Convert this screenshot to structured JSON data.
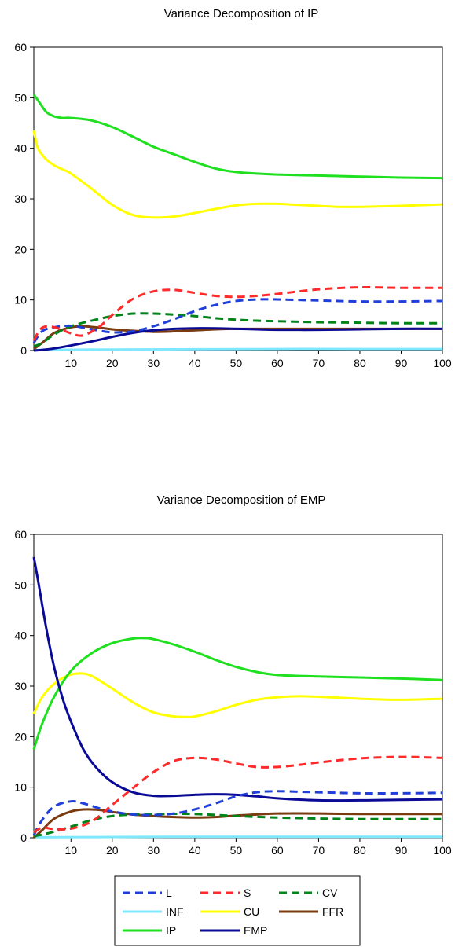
{
  "chart_data": [
    {
      "type": "line",
      "title": "Variance Decomposition of IP",
      "xlabel": "",
      "ylabel": "",
      "xlim": [
        1,
        100
      ],
      "ylim": [
        0,
        60
      ],
      "xticks": [
        10,
        20,
        30,
        40,
        50,
        60,
        70,
        80,
        90,
        100
      ],
      "yticks": [
        0,
        10,
        20,
        30,
        40,
        50,
        60
      ],
      "grid": false,
      "series": [
        {
          "name": "L",
          "color": "#1f3fd8",
          "dash": true,
          "x": [
            1,
            3,
            6,
            10,
            15,
            20,
            25,
            30,
            35,
            40,
            45,
            50,
            55,
            60,
            70,
            80,
            90,
            100
          ],
          "values": [
            1.5,
            3.8,
            4.6,
            4.9,
            4.2,
            3.6,
            3.8,
            4.8,
            6.2,
            7.8,
            9.0,
            9.8,
            10.1,
            10.1,
            9.9,
            9.7,
            9.7,
            9.8
          ]
        },
        {
          "name": "S",
          "color": "#ff2a2a",
          "dash": true,
          "x": [
            1,
            3,
            6,
            10,
            13,
            17,
            20,
            25,
            30,
            35,
            40,
            45,
            50,
            55,
            60,
            70,
            80,
            90,
            100
          ],
          "values": [
            2.0,
            4.5,
            4.6,
            3.4,
            3.0,
            4.8,
            7.0,
            10.2,
            11.7,
            12.0,
            11.4,
            10.8,
            10.6,
            10.8,
            11.2,
            12.1,
            12.5,
            12.4,
            12.4
          ]
        },
        {
          "name": "CV",
          "color": "#00841a",
          "dash": true,
          "x": [
            1,
            3,
            6,
            10,
            15,
            20,
            25,
            30,
            35,
            40,
            45,
            50,
            55,
            60,
            70,
            80,
            90,
            100
          ],
          "values": [
            0.8,
            1.5,
            3.2,
            4.8,
            5.9,
            6.8,
            7.3,
            7.3,
            7.1,
            6.8,
            6.4,
            6.1,
            5.9,
            5.8,
            5.6,
            5.5,
            5.4,
            5.4
          ]
        },
        {
          "name": "INF",
          "color": "#7fe8ff",
          "dash": false,
          "x": [
            1,
            20,
            40,
            60,
            80,
            100
          ],
          "values": [
            0.1,
            0.2,
            0.25,
            0.3,
            0.3,
            0.3
          ]
        },
        {
          "name": "CU",
          "color": "#ffff00",
          "dash": false,
          "x": [
            1,
            2,
            4,
            6,
            8,
            10,
            15,
            20,
            25,
            30,
            35,
            40,
            45,
            50,
            55,
            60,
            65,
            70,
            75,
            80,
            85,
            90,
            100
          ],
          "values": [
            43.5,
            40.0,
            37.8,
            36.6,
            35.8,
            35.0,
            32.0,
            28.8,
            26.8,
            26.3,
            26.5,
            27.2,
            28.0,
            28.7,
            29.0,
            29.0,
            28.8,
            28.6,
            28.4,
            28.4,
            28.5,
            28.6,
            28.9
          ]
        },
        {
          "name": "FFR",
          "color": "#7a3b10",
          "dash": false,
          "x": [
            1,
            3,
            6,
            10,
            13,
            17,
            20,
            25,
            30,
            35,
            40,
            45,
            50,
            60,
            70,
            80,
            90,
            100
          ],
          "values": [
            0.3,
            1.5,
            3.5,
            4.6,
            4.8,
            4.5,
            4.2,
            3.9,
            3.7,
            3.8,
            4.0,
            4.2,
            4.3,
            4.3,
            4.3,
            4.3,
            4.3,
            4.3
          ]
        },
        {
          "name": "IP",
          "color": "#1ee01e",
          "dash": false,
          "x": [
            1,
            2,
            4,
            6,
            8,
            10,
            15,
            20,
            25,
            30,
            35,
            40,
            45,
            50,
            55,
            60,
            70,
            80,
            90,
            100
          ],
          "values": [
            50.6,
            49.5,
            47.2,
            46.3,
            46.0,
            46.0,
            45.5,
            44.2,
            42.3,
            40.3,
            38.8,
            37.3,
            36.0,
            35.3,
            35.0,
            34.8,
            34.6,
            34.4,
            34.2,
            34.1
          ]
        },
        {
          "name": "EMP",
          "color": "#0a0a96",
          "dash": false,
          "x": [
            1,
            5,
            10,
            15,
            20,
            25,
            30,
            35,
            40,
            45,
            50,
            55,
            60,
            70,
            80,
            90,
            100
          ],
          "values": [
            0.0,
            0.3,
            1.0,
            1.8,
            2.7,
            3.5,
            4.0,
            4.3,
            4.4,
            4.4,
            4.3,
            4.2,
            4.1,
            4.1,
            4.2,
            4.3,
            4.3
          ]
        }
      ]
    },
    {
      "type": "line",
      "title": "Variance Decomposition of EMP",
      "xlabel": "",
      "ylabel": "",
      "xlim": [
        1,
        100
      ],
      "ylim": [
        0,
        60
      ],
      "xticks": [
        10,
        20,
        30,
        40,
        50,
        60,
        70,
        80,
        90,
        100
      ],
      "yticks": [
        0,
        10,
        20,
        30,
        40,
        50,
        60
      ],
      "grid": false,
      "series": [
        {
          "name": "L",
          "color": "#1f3fd8",
          "dash": true,
          "x": [
            1,
            3,
            6,
            10,
            13,
            17,
            20,
            25,
            30,
            35,
            40,
            45,
            50,
            55,
            60,
            70,
            80,
            90,
            100
          ],
          "values": [
            0.5,
            3.5,
            6.2,
            7.2,
            6.8,
            5.8,
            5.2,
            4.6,
            4.5,
            4.8,
            5.6,
            6.8,
            8.2,
            9.0,
            9.2,
            9.0,
            8.8,
            8.8,
            8.9
          ]
        },
        {
          "name": "S",
          "color": "#ff2a2a",
          "dash": true,
          "x": [
            1,
            3,
            6,
            10,
            15,
            20,
            25,
            30,
            35,
            40,
            45,
            50,
            55,
            60,
            65,
            70,
            80,
            90,
            100
          ],
          "values": [
            1.0,
            2.0,
            1.7,
            1.8,
            3.2,
            6.5,
            9.8,
            13.0,
            15.2,
            15.8,
            15.5,
            14.7,
            14.0,
            14.0,
            14.4,
            14.9,
            15.7,
            16.0,
            15.8
          ]
        },
        {
          "name": "CV",
          "color": "#00841a",
          "dash": true,
          "x": [
            1,
            5,
            10,
            15,
            20,
            25,
            30,
            40,
            50,
            60,
            70,
            80,
            90,
            100
          ],
          "values": [
            0.3,
            1.0,
            2.2,
            3.5,
            4.3,
            4.6,
            4.7,
            4.7,
            4.3,
            4.0,
            3.8,
            3.7,
            3.7,
            3.7
          ]
        },
        {
          "name": "INF",
          "color": "#7fe8ff",
          "dash": false,
          "x": [
            1,
            20,
            40,
            60,
            80,
            100
          ],
          "values": [
            0.1,
            0.15,
            0.2,
            0.2,
            0.2,
            0.2
          ]
        },
        {
          "name": "CU",
          "color": "#ffff00",
          "dash": false,
          "x": [
            1,
            3,
            6,
            9,
            12,
            15,
            20,
            25,
            30,
            35,
            38,
            40,
            45,
            50,
            55,
            60,
            65,
            70,
            80,
            90,
            100
          ],
          "values": [
            24.5,
            27.8,
            30.5,
            32.0,
            32.5,
            32.0,
            29.5,
            26.8,
            24.8,
            24.0,
            23.9,
            24.0,
            25.0,
            26.3,
            27.3,
            27.8,
            28.0,
            27.9,
            27.5,
            27.3,
            27.5
          ]
        },
        {
          "name": "FFR",
          "color": "#7a3b10",
          "dash": false,
          "x": [
            1,
            3,
            6,
            10,
            13,
            17,
            20,
            25,
            30,
            35,
            40,
            45,
            50,
            55,
            60,
            70,
            80,
            90,
            100
          ],
          "values": [
            0.0,
            1.5,
            3.8,
            5.2,
            5.6,
            5.5,
            5.1,
            4.6,
            4.3,
            4.1,
            4.0,
            4.1,
            4.4,
            4.6,
            4.8,
            4.8,
            4.7,
            4.7,
            4.7
          ]
        },
        {
          "name": "IP",
          "color": "#1ee01e",
          "dash": false,
          "x": [
            1,
            3,
            6,
            10,
            15,
            20,
            25,
            28,
            30,
            35,
            40,
            45,
            50,
            55,
            60,
            70,
            80,
            90,
            100
          ],
          "values": [
            17.5,
            22.5,
            28.0,
            33.0,
            36.5,
            38.5,
            39.4,
            39.5,
            39.3,
            38.2,
            36.8,
            35.2,
            33.8,
            32.8,
            32.2,
            31.9,
            31.7,
            31.5,
            31.2
          ]
        },
        {
          "name": "EMP",
          "color": "#0a0a96",
          "dash": false,
          "x": [
            1,
            2,
            4,
            6,
            8,
            10,
            13,
            16,
            20,
            25,
            30,
            35,
            40,
            45,
            50,
            55,
            60,
            70,
            80,
            90,
            100
          ],
          "values": [
            55.5,
            51.0,
            41.5,
            33.5,
            27.5,
            23.0,
            17.5,
            14.0,
            11.0,
            9.0,
            8.3,
            8.3,
            8.5,
            8.6,
            8.5,
            8.2,
            7.8,
            7.4,
            7.4,
            7.5,
            7.6
          ]
        }
      ]
    }
  ],
  "legend": {
    "items": [
      {
        "label": "L",
        "color": "#1f3fd8",
        "dash": true
      },
      {
        "label": "S",
        "color": "#ff2a2a",
        "dash": true
      },
      {
        "label": "CV",
        "color": "#00841a",
        "dash": true
      },
      {
        "label": "INF",
        "color": "#7fe8ff",
        "dash": false
      },
      {
        "label": "CU",
        "color": "#ffff00",
        "dash": false
      },
      {
        "label": "FFR",
        "color": "#7a3b10",
        "dash": false
      },
      {
        "label": "IP",
        "color": "#1ee01e",
        "dash": false
      },
      {
        "label": "EMP",
        "color": "#0a0a96",
        "dash": false
      }
    ]
  }
}
